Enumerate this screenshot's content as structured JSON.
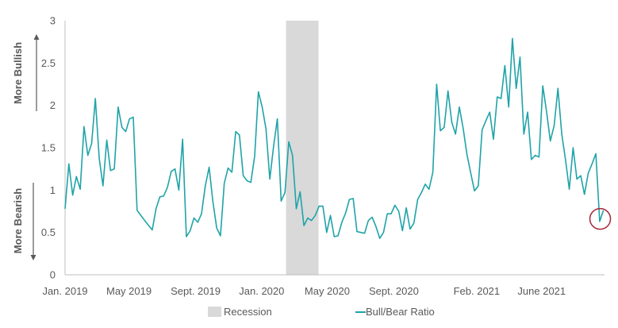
{
  "chart_data": {
    "type": "line",
    "title": "",
    "xlabel": "",
    "ylabel": "",
    "ylim": [
      0,
      3
    ],
    "xlim": [
      "2019-01-03",
      "2021-09-25"
    ],
    "y_ticks": [
      "0",
      "0.5",
      "1",
      "1.5",
      "2",
      "2.5",
      "3"
    ],
    "x_ticks": [
      {
        "label": "Jan. 2019",
        "date": "2019-01-03"
      },
      {
        "label": "May 2019",
        "date": "2019-05-01"
      },
      {
        "label": "Sept. 2019",
        "date": "2019-09-01"
      },
      {
        "label": "Jan. 2020",
        "date": "2020-01-01"
      },
      {
        "label": "May 2020",
        "date": "2020-05-01"
      },
      {
        "label": "Sept. 2020",
        "date": "2020-09-01"
      },
      {
        "label": "Feb. 2021",
        "date": "2021-02-01"
      },
      {
        "label": "June 2021",
        "date": "2021-06-01"
      }
    ],
    "side_labels": {
      "top": "More Bullish",
      "bottom": "More Bearish"
    },
    "recession": {
      "name": "Recession",
      "start": "2020-02-15",
      "end": "2020-04-15",
      "color": "#d9d9d9"
    },
    "series": [
      {
        "name": "Bull/Bear Ratio",
        "color": "#1fa3a8",
        "points": [
          [
            "2019-01-03",
            0.78
          ],
          [
            "2019-01-10",
            1.31
          ],
          [
            "2019-01-17",
            0.94
          ],
          [
            "2019-01-24",
            1.16
          ],
          [
            "2019-01-31",
            1.01
          ],
          [
            "2019-02-07",
            1.75
          ],
          [
            "2019-02-14",
            1.41
          ],
          [
            "2019-02-21",
            1.55
          ],
          [
            "2019-02-28",
            2.08
          ],
          [
            "2019-03-07",
            1.38
          ],
          [
            "2019-03-14",
            1.05
          ],
          [
            "2019-03-21",
            1.59
          ],
          [
            "2019-03-28",
            1.23
          ],
          [
            "2019-04-04",
            1.25
          ],
          [
            "2019-04-11",
            1.98
          ],
          [
            "2019-04-18",
            1.74
          ],
          [
            "2019-04-25",
            1.69
          ],
          [
            "2019-05-02",
            1.84
          ],
          [
            "2019-05-09",
            1.86
          ],
          [
            "2019-05-16",
            0.76
          ],
          [
            "2019-05-30",
            0.64
          ],
          [
            "2019-06-13",
            0.53
          ],
          [
            "2019-06-20",
            0.78
          ],
          [
            "2019-06-27",
            0.92
          ],
          [
            "2019-07-04",
            0.93
          ],
          [
            "2019-07-11",
            1.03
          ],
          [
            "2019-07-18",
            1.22
          ],
          [
            "2019-07-25",
            1.25
          ],
          [
            "2019-08-01",
            1.0
          ],
          [
            "2019-08-08",
            1.6
          ],
          [
            "2019-08-15",
            0.45
          ],
          [
            "2019-08-22",
            0.52
          ],
          [
            "2019-08-29",
            0.67
          ],
          [
            "2019-09-05",
            0.62
          ],
          [
            "2019-09-12",
            0.72
          ],
          [
            "2019-09-19",
            1.05
          ],
          [
            "2019-09-26",
            1.27
          ],
          [
            "2019-10-03",
            0.86
          ],
          [
            "2019-10-10",
            0.55
          ],
          [
            "2019-10-17",
            0.46
          ],
          [
            "2019-10-24",
            1.08
          ],
          [
            "2019-10-31",
            1.26
          ],
          [
            "2019-11-07",
            1.21
          ],
          [
            "2019-11-14",
            1.69
          ],
          [
            "2019-11-21",
            1.65
          ],
          [
            "2019-11-28",
            1.17
          ],
          [
            "2019-12-05",
            1.11
          ],
          [
            "2019-12-12",
            1.09
          ],
          [
            "2019-12-19",
            1.4
          ],
          [
            "2019-12-26",
            2.16
          ],
          [
            "2020-01-02",
            1.98
          ],
          [
            "2020-01-09",
            1.72
          ],
          [
            "2020-01-16",
            1.13
          ],
          [
            "2020-01-23",
            1.52
          ],
          [
            "2020-01-30",
            1.84
          ],
          [
            "2020-02-06",
            0.87
          ],
          [
            "2020-02-13",
            0.97
          ],
          [
            "2020-02-20",
            1.57
          ],
          [
            "2020-02-27",
            1.41
          ],
          [
            "2020-03-05",
            0.78
          ],
          [
            "2020-03-12",
            0.98
          ],
          [
            "2020-03-19",
            0.58
          ],
          [
            "2020-03-26",
            0.67
          ],
          [
            "2020-04-02",
            0.64
          ],
          [
            "2020-04-09",
            0.7
          ],
          [
            "2020-04-16",
            0.81
          ],
          [
            "2020-04-23",
            0.81
          ],
          [
            "2020-04-30",
            0.5
          ],
          [
            "2020-05-07",
            0.7
          ],
          [
            "2020-05-14",
            0.45
          ],
          [
            "2020-05-21",
            0.46
          ],
          [
            "2020-05-28",
            0.62
          ],
          [
            "2020-06-04",
            0.73
          ],
          [
            "2020-06-11",
            0.89
          ],
          [
            "2020-06-18",
            0.9
          ],
          [
            "2020-06-25",
            0.51
          ],
          [
            "2020-07-02",
            0.5
          ],
          [
            "2020-07-09",
            0.49
          ],
          [
            "2020-07-16",
            0.64
          ],
          [
            "2020-07-23",
            0.68
          ],
          [
            "2020-07-30",
            0.57
          ],
          [
            "2020-08-06",
            0.43
          ],
          [
            "2020-08-13",
            0.5
          ],
          [
            "2020-08-20",
            0.72
          ],
          [
            "2020-08-27",
            0.72
          ],
          [
            "2020-09-03",
            0.82
          ],
          [
            "2020-09-10",
            0.75
          ],
          [
            "2020-09-17",
            0.52
          ],
          [
            "2020-09-24",
            0.79
          ],
          [
            "2020-10-01",
            0.54
          ],
          [
            "2020-10-08",
            0.61
          ],
          [
            "2020-10-15",
            0.89
          ],
          [
            "2020-10-22",
            0.97
          ],
          [
            "2020-10-29",
            1.07
          ],
          [
            "2020-11-05",
            1.01
          ],
          [
            "2020-11-12",
            1.21
          ],
          [
            "2020-11-19",
            2.25
          ],
          [
            "2020-11-26",
            1.7
          ],
          [
            "2020-12-03",
            1.74
          ],
          [
            "2020-12-10",
            2.17
          ],
          [
            "2020-12-17",
            1.8
          ],
          [
            "2020-12-24",
            1.66
          ],
          [
            "2020-12-31",
            1.98
          ],
          [
            "2021-01-07",
            1.73
          ],
          [
            "2021-01-14",
            1.42
          ],
          [
            "2021-01-21",
            1.2
          ],
          [
            "2021-01-28",
            0.99
          ],
          [
            "2021-02-04",
            1.05
          ],
          [
            "2021-02-11",
            1.71
          ],
          [
            "2021-02-18",
            1.82
          ],
          [
            "2021-02-25",
            1.92
          ],
          [
            "2021-03-04",
            1.6
          ],
          [
            "2021-03-11",
            2.1
          ],
          [
            "2021-03-18",
            2.08
          ],
          [
            "2021-03-25",
            2.47
          ],
          [
            "2021-04-01",
            1.98
          ],
          [
            "2021-04-08",
            2.79
          ],
          [
            "2021-04-15",
            2.2
          ],
          [
            "2021-04-22",
            2.57
          ],
          [
            "2021-04-29",
            1.66
          ],
          [
            "2021-05-06",
            1.92
          ],
          [
            "2021-05-13",
            1.36
          ],
          [
            "2021-05-20",
            1.41
          ],
          [
            "2021-05-27",
            1.39
          ],
          [
            "2021-06-03",
            2.23
          ],
          [
            "2021-06-10",
            1.93
          ],
          [
            "2021-06-17",
            1.58
          ],
          [
            "2021-06-24",
            1.76
          ],
          [
            "2021-07-01",
            2.2
          ],
          [
            "2021-07-08",
            1.66
          ],
          [
            "2021-07-15",
            1.36
          ],
          [
            "2021-07-22",
            1.01
          ],
          [
            "2021-07-29",
            1.5
          ],
          [
            "2021-08-05",
            1.13
          ],
          [
            "2021-08-12",
            1.17
          ],
          [
            "2021-08-19",
            0.95
          ],
          [
            "2021-08-26",
            1.2
          ],
          [
            "2021-09-02",
            1.31
          ],
          [
            "2021-09-09",
            1.43
          ],
          [
            "2021-09-16",
            0.63
          ],
          [
            "2021-09-23",
            0.76
          ]
        ]
      }
    ],
    "highlight": {
      "date": "2021-09-17",
      "value": 0.66,
      "color": "#a62639"
    },
    "legend_position": "bottom",
    "grid": false
  }
}
